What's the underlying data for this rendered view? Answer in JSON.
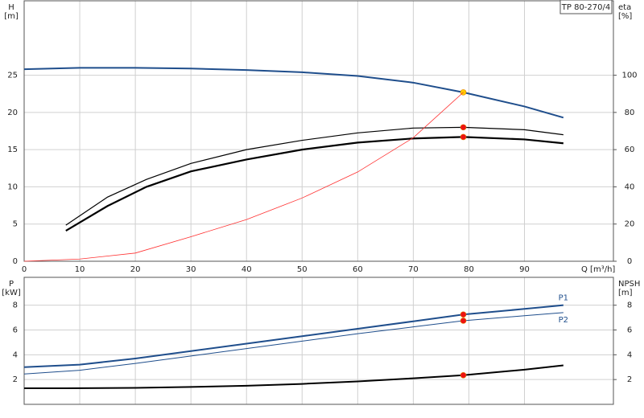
{
  "chart_data": [
    {
      "type": "line",
      "title": "TP 80-270/4",
      "ylabel": [
        "H",
        "[m]"
      ],
      "y2label": [
        "eta",
        "[%]"
      ],
      "xlabel": "Q [m³/h]",
      "xlim": [
        0,
        106
      ],
      "xticks": [
        0,
        10,
        20,
        30,
        40,
        50,
        60,
        70,
        80,
        90
      ],
      "ylim": [
        0,
        35
      ],
      "yticks": [
        0,
        5,
        10,
        15,
        20,
        25
      ],
      "y2lim": [
        0,
        140
      ],
      "y2ticks": [
        0,
        20,
        40,
        60,
        80,
        100
      ],
      "grid": true,
      "series": [
        {
          "color": "#1f4e8c",
          "width": 2,
          "x": [
            0,
            10,
            20,
            30,
            40,
            50,
            60,
            70,
            79,
            90,
            97
          ],
          "values": [
            25.8,
            26,
            26,
            25.9,
            25.7,
            25.4,
            24.9,
            24,
            22.7,
            20.8,
            19.3
          ],
          "highlight": 8,
          "highlight_color": "#ffcc00"
        },
        {
          "color": "#000000",
          "width": 1.2,
          "axis": "y2",
          "x": [
            7.5,
            15,
            22,
            30,
            40,
            50,
            60,
            70,
            79,
            90,
            97
          ],
          "values": [
            19.4,
            34.5,
            44,
            52.6,
            60,
            65,
            69,
            71.6,
            72,
            70.7,
            68
          ],
          "highlight": 8,
          "highlight_color": "#ee1111"
        },
        {
          "color": "#000000",
          "width": 2.2,
          "axis": "y2",
          "x": [
            7.5,
            15,
            22,
            30,
            40,
            50,
            60,
            70,
            79,
            90,
            97
          ],
          "values": [
            16.4,
            29.7,
            40,
            48.3,
            54.7,
            60,
            63.8,
            66,
            66.8,
            65.5,
            63.4
          ],
          "highlight": 8,
          "highlight_color": "#ee1111"
        },
        {
          "color": "#ff3030",
          "width": 0.8,
          "x": [
            0,
            10,
            20,
            30,
            40,
            50,
            60,
            70,
            79
          ],
          "values": [
            0,
            0.3,
            1.1,
            3.3,
            5.6,
            8.5,
            12,
            16.6,
            22.7
          ]
        }
      ]
    },
    {
      "type": "line",
      "ylabel": [
        "P",
        "[kW]"
      ],
      "y2label": [
        "NPSH",
        "[m]"
      ],
      "xlim": [
        0,
        106
      ],
      "ylim": [
        0,
        10.25
      ],
      "yticks": [
        2,
        4,
        6,
        8
      ],
      "y2lim": [
        0,
        10.25
      ],
      "y2ticks": [
        2,
        4,
        6,
        8
      ],
      "grid": true,
      "series": [
        {
          "name": "P1",
          "color": "#1f4e8c",
          "width": 2,
          "x": [
            0,
            10,
            20,
            30,
            40,
            50,
            60,
            70,
            79,
            90,
            97
          ],
          "values": [
            3.0,
            3.2,
            3.7,
            4.3,
            4.9,
            5.5,
            6.1,
            6.7,
            7.25,
            7.7,
            8.0
          ],
          "highlight": 8,
          "highlight_color": "#ee1111"
        },
        {
          "name": "P2",
          "color": "#1f4e8c",
          "width": 1,
          "x": [
            0,
            10,
            20,
            30,
            40,
            50,
            60,
            70,
            79,
            90,
            97
          ],
          "values": [
            2.45,
            2.75,
            3.3,
            3.9,
            4.5,
            5.1,
            5.7,
            6.25,
            6.75,
            7.15,
            7.4
          ],
          "highlight": 8,
          "highlight_color": "#ee1111"
        },
        {
          "color": "#000000",
          "width": 2,
          "axis": "y2",
          "x": [
            0,
            7.5,
            20,
            30,
            40,
            50,
            60,
            70,
            79,
            90,
            97
          ],
          "values": [
            1.3,
            1.3,
            1.33,
            1.4,
            1.5,
            1.65,
            1.85,
            2.1,
            2.35,
            2.8,
            3.15
          ],
          "highlight": 8,
          "highlight_color": "#ee1111"
        }
      ]
    }
  ]
}
